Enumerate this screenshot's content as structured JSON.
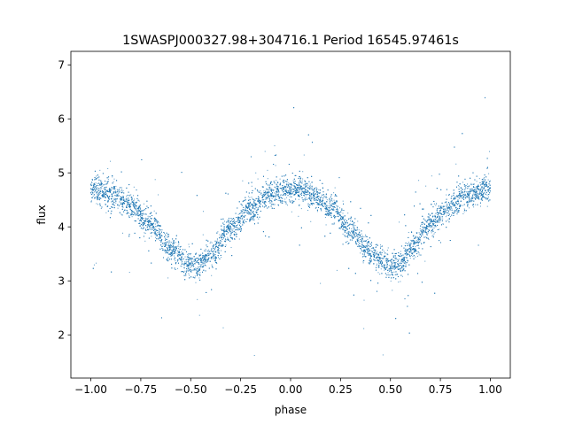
{
  "chart_data": {
    "type": "scatter",
    "title": "1SWASPJ000327.98+304716.1 Period 16545.97461s",
    "xlabel": "phase",
    "ylabel": "flux",
    "xlim": [
      -1.1,
      1.1
    ],
    "ylim": [
      1.2,
      7.25
    ],
    "xticks": [
      -1.0,
      -0.75,
      -0.5,
      -0.25,
      0.0,
      0.25,
      0.5,
      0.75,
      1.0
    ],
    "xtick_labels": [
      "−1.00",
      "−0.75",
      "−0.50",
      "−0.25",
      "0.00",
      "0.25",
      "0.50",
      "0.75",
      "1.00"
    ],
    "yticks": [
      2,
      3,
      4,
      5,
      6,
      7
    ],
    "ytick_labels": [
      "2",
      "3",
      "4",
      "5",
      "6",
      "7"
    ],
    "grid": false,
    "legend": "none",
    "marker_color": "#1f77b4",
    "phase_range": [
      -1.0,
      1.0
    ],
    "curve_phase": [
      -1.0,
      -0.9,
      -0.8,
      -0.7,
      -0.6,
      -0.5,
      -0.45,
      -0.4,
      -0.3,
      -0.2,
      -0.1,
      0.0,
      0.05,
      0.1,
      0.2,
      0.3,
      0.4,
      0.5,
      0.55,
      0.6,
      0.7,
      0.8,
      0.9,
      1.0
    ],
    "curve_flux": [
      4.7,
      4.6,
      4.4,
      4.05,
      3.6,
      3.3,
      3.3,
      3.5,
      3.95,
      4.35,
      4.6,
      4.7,
      4.7,
      4.6,
      4.35,
      3.95,
      3.5,
      3.3,
      3.3,
      3.6,
      4.05,
      4.4,
      4.6,
      4.7
    ]
  }
}
